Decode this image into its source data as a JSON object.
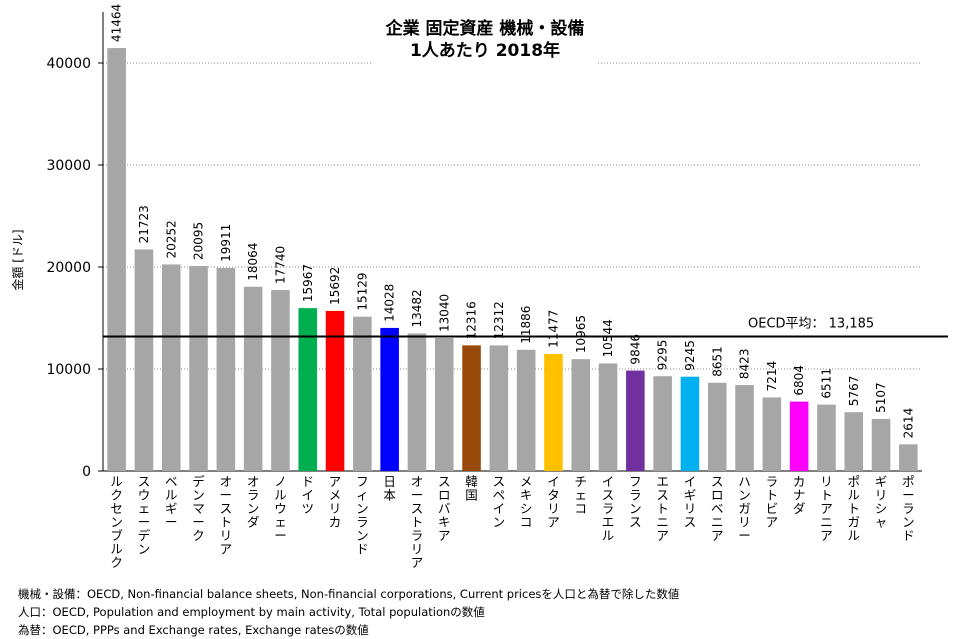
{
  "chart_data": {
    "type": "bar",
    "title": [
      "企業 固定資産 機械・設備",
      "1人あたり 2018年"
    ],
    "ylabel": "金額 [ドル]",
    "ylim": [
      0,
      45000
    ],
    "yticks": [
      0,
      10000,
      20000,
      30000,
      40000
    ],
    "grid": true,
    "reference_line": {
      "label": "OECD平均： 13,185",
      "value": 13185
    },
    "categories": [
      "ルクセンブルク",
      "スウェーデン",
      "ベルギー",
      "デンマーク",
      "オーストリア",
      "オランダ",
      "ノルウェー",
      "ドイツ",
      "アメリカ",
      "フィンランド",
      "日本",
      "オーストラリア",
      "スロバキア",
      "韓国",
      "スペイン",
      "メキシコ",
      "イタリア",
      "チェコ",
      "イスラエル",
      "フランス",
      "エストニア",
      "イギリス",
      "スロベニア",
      "ハンガリー",
      "ラトビア",
      "カナダ",
      "リトアニア",
      "ポルトガル",
      "ギリシャ",
      "ポーランド"
    ],
    "values": [
      41464,
      21723,
      20252,
      20095,
      19911,
      18064,
      17740,
      15967,
      15692,
      15129,
      14028,
      13482,
      13040,
      12316,
      12312,
      11886,
      11477,
      10965,
      10544,
      9846,
      9295,
      9245,
      8651,
      8423,
      7214,
      6804,
      6511,
      5767,
      5107,
      2614
    ],
    "colors": [
      "#a6a6a6",
      "#a6a6a6",
      "#a6a6a6",
      "#a6a6a6",
      "#a6a6a6",
      "#a6a6a6",
      "#a6a6a6",
      "#00b050",
      "#ff0000",
      "#a6a6a6",
      "#0000ff",
      "#a6a6a6",
      "#a6a6a6",
      "#984807",
      "#a6a6a6",
      "#a6a6a6",
      "#ffc000",
      "#a6a6a6",
      "#a6a6a6",
      "#7030a0",
      "#a6a6a6",
      "#00b0f0",
      "#a6a6a6",
      "#a6a6a6",
      "#a6a6a6",
      "#ff00ff",
      "#a6a6a6",
      "#a6a6a6",
      "#a6a6a6",
      "#a6a6a6"
    ]
  },
  "notes": [
    "機械・設備：OECD, Non-financial balance sheets, Non-financial corporations, Current pricesを人口と為替で除した数値",
    "人口：OECD, Population and employment by main activity, Total populationの数値",
    "為替：OECD, PPPs and Exchange rates, Exchange ratesの数値"
  ]
}
